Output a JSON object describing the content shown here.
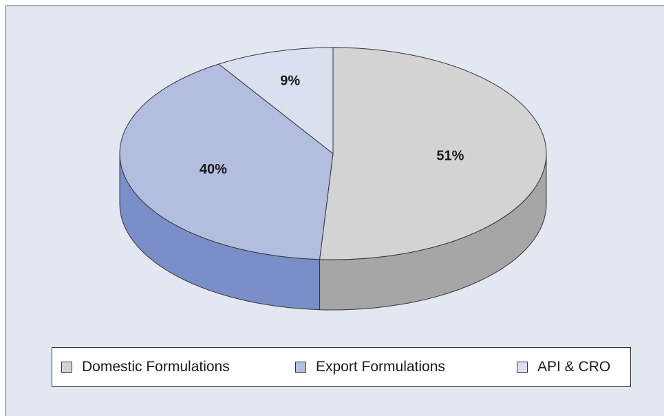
{
  "chart_data": {
    "type": "pie",
    "categories": [
      "Domestic Formulations",
      "Export Formulations",
      "API & CRO"
    ],
    "values": [
      51,
      40,
      9
    ],
    "unit": "%",
    "data_labels": [
      "51%",
      "40%",
      "9%"
    ],
    "style": "3d",
    "legend_position": "bottom",
    "colors": {
      "top": [
        "#d3d3d3",
        "#b2bde0",
        "#dbe0f0"
      ],
      "side": [
        "#a6a6a6",
        "#7a8ec9",
        "#b7c0df"
      ]
    }
  }
}
